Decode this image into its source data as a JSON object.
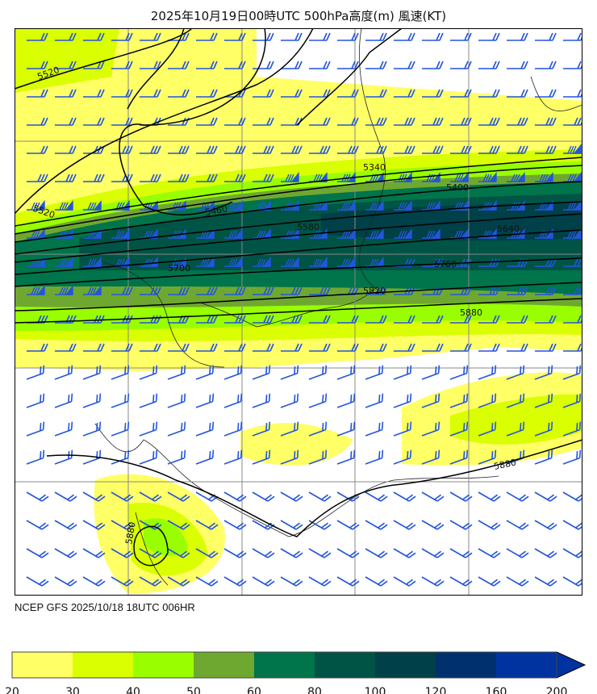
{
  "title": "2025年10月19日00時UTC 500hPa高度(m) 風速(KT)",
  "run_info": "NCEP GFS 2025/10/18 18UTC 006HR",
  "contour_labels": [
    "5520",
    "5520",
    "5340",
    "5400",
    "5460",
    "5580",
    "5640",
    "5700",
    "5760",
    "5820",
    "5880",
    "5880",
    "5880"
  ],
  "colorbar": {
    "ticks": [
      "20",
      "30",
      "40",
      "50",
      "60",
      "80",
      "100",
      "120",
      "160",
      "200"
    ],
    "colors": [
      "#ffff66",
      "#d9ff00",
      "#99ff00",
      "#6fa830",
      "#00744a",
      "#005446",
      "#004048",
      "#00306e",
      "#0033a0"
    ],
    "extend": "max"
  },
  "colors": {
    "wind_barb": "#2255dd",
    "contour": "#000000",
    "grid": "#888888"
  }
}
